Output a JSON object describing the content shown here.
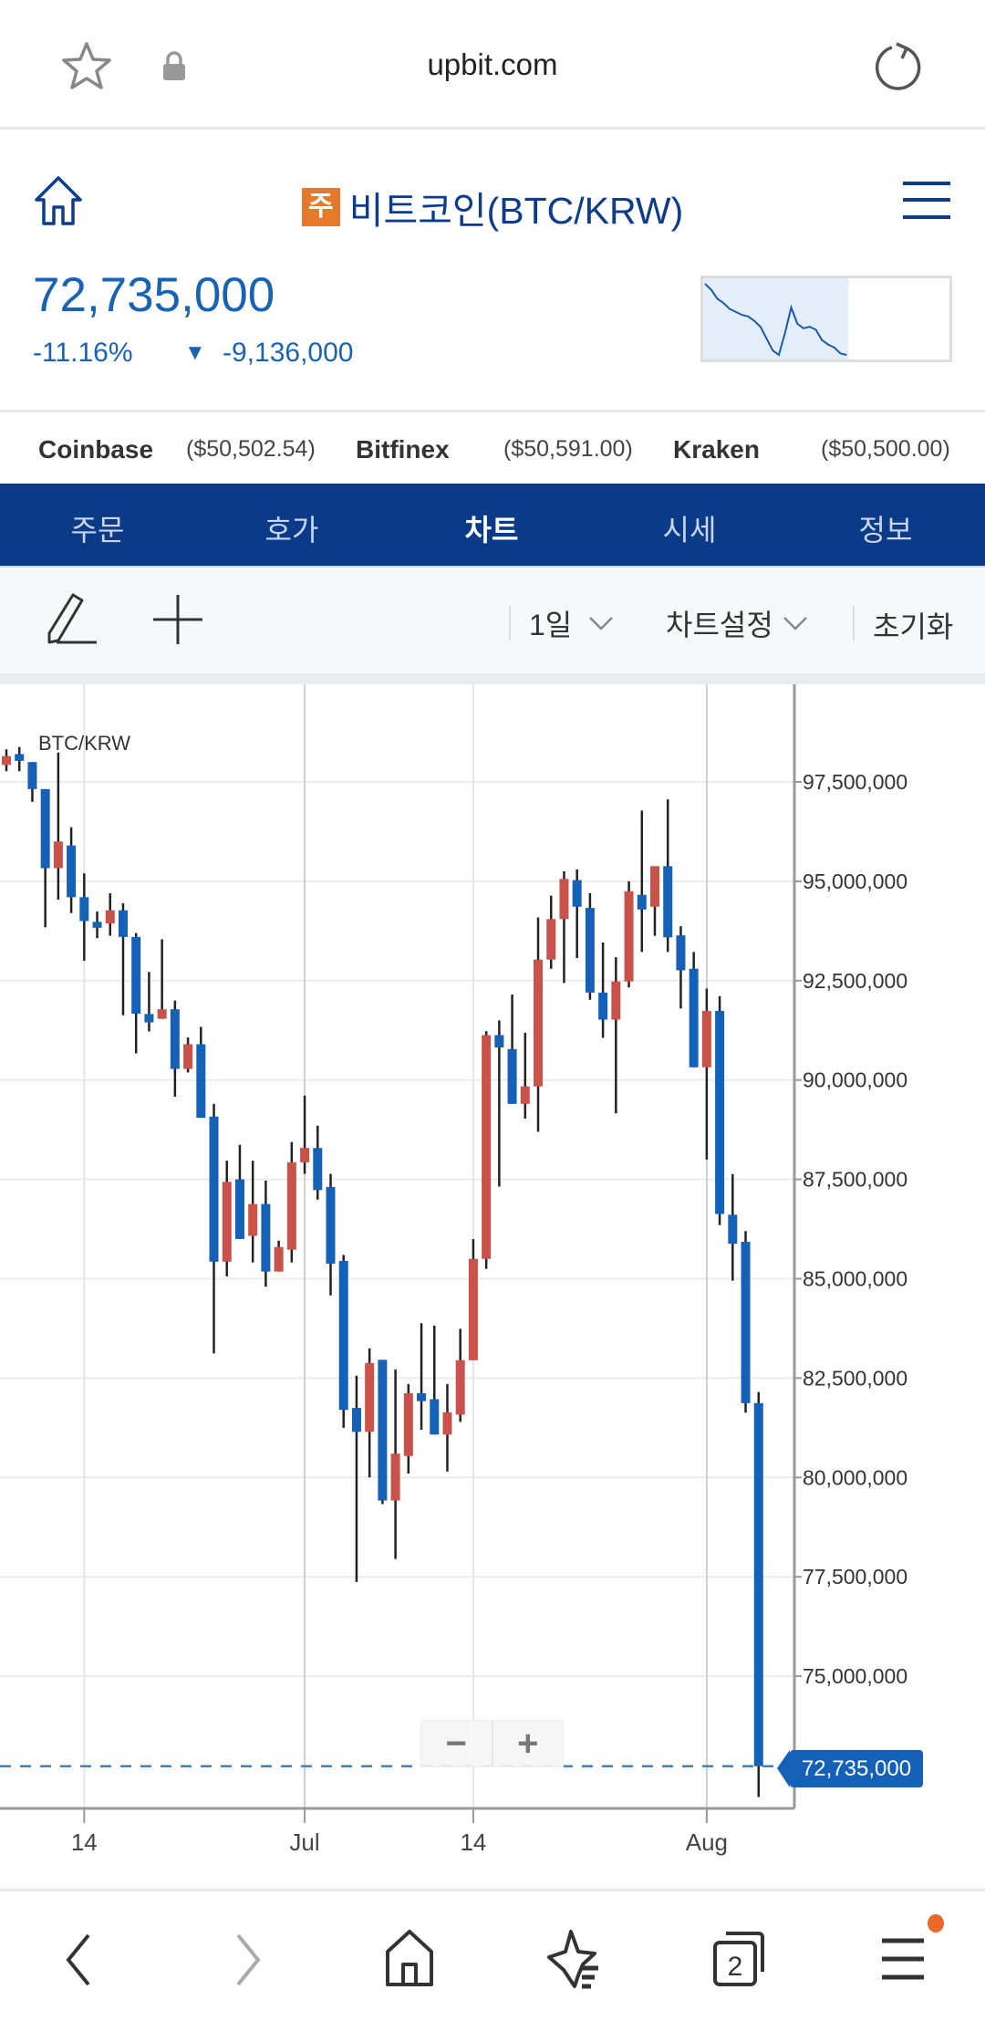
{
  "browser": {
    "url": "upbit.com",
    "icons": [
      "star-icon",
      "lock-icon",
      "reload-icon"
    ]
  },
  "header": {
    "badge": "주",
    "title": "비트코인(BTC/KRW)",
    "price": "72,735,000",
    "change_pct": "-11.16%",
    "change_arrow": "▼",
    "change_value": "-9,136,000",
    "colors": {
      "price": "#1a62b3",
      "badge": "#e6792b",
      "title": "#0d3c8c"
    }
  },
  "sparkline": {
    "levels": [
      285,
      265,
      235,
      220,
      200,
      190,
      180,
      175,
      160,
      140,
      100,
      60,
      45,
      120,
      205,
      150,
      135,
      140,
      130,
      95,
      80,
      70,
      50,
      45
    ],
    "filled_fraction": 0.59
  },
  "exchanges": [
    {
      "name": "Coinbase",
      "price": "($50,502.54)"
    },
    {
      "name": "Bitfinex",
      "price": "($50,591.00)"
    },
    {
      "name": "Kraken",
      "price": "($50,500.00)"
    }
  ],
  "tabs": [
    {
      "label": "주문"
    },
    {
      "label": "호가"
    },
    {
      "label": "차트",
      "active": true
    },
    {
      "label": "시세"
    },
    {
      "label": "정보"
    }
  ],
  "toolbar": {
    "interval": "1일",
    "settings": "차트설정",
    "reset": "초기화",
    "zoom_out": "−",
    "zoom_in": "+"
  },
  "chart_data": {
    "type": "candlestick",
    "title": "BTC/KRW",
    "colors": {
      "up": "#c9524a",
      "down": "#1561b8",
      "wick": "#222222"
    },
    "ylim": [
      71750000,
      99900000
    ],
    "y_ticks": [
      97500000,
      95000000,
      92500000,
      90000000,
      87500000,
      85000000,
      82500000,
      80000000,
      77500000,
      75000000
    ],
    "y_tick_labels": [
      "97,500,000",
      "95,000,000",
      "92,500,000",
      "90,000,000",
      "87,500,000",
      "85,000,000",
      "82,500,000",
      "80,000,000",
      "77,500,000",
      "75,000,000"
    ],
    "x_ticks": [
      {
        "date": "06-14",
        "label": "14",
        "month": false
      },
      {
        "date": "07-01",
        "label": "Jul",
        "month": true
      },
      {
        "date": "07-14",
        "label": "14",
        "month": false
      },
      {
        "date": "08-01",
        "label": "Aug",
        "month": true
      }
    ],
    "current_price": 72735000,
    "current_price_label": "72,735,000",
    "candles_columns": [
      "date",
      "open",
      "high",
      "low",
      "close"
    ],
    "candles": [
      [
        "06-08",
        97930000,
        98320000,
        97770000,
        98150000
      ],
      [
        "06-09",
        98200000,
        98380000,
        97770000,
        98030000
      ],
      [
        "06-10",
        98000000,
        98000000,
        97000000,
        97320000
      ],
      [
        "06-11",
        97320000,
        97320000,
        93840000,
        95330000
      ],
      [
        "06-12",
        95330000,
        98240000,
        94540000,
        96000000
      ],
      [
        "06-13",
        95900000,
        96360000,
        94200000,
        94600000
      ],
      [
        "06-14",
        94600000,
        95200000,
        93000000,
        94000000
      ],
      [
        "06-15",
        93980000,
        94240000,
        93570000,
        93830000
      ],
      [
        "06-16",
        93940000,
        94700000,
        93630000,
        94270000
      ],
      [
        "06-17",
        94270000,
        94450000,
        91630000,
        93600000
      ],
      [
        "06-18",
        93600000,
        93700000,
        90670000,
        91670000
      ],
      [
        "06-19",
        91660000,
        92720000,
        91220000,
        91450000
      ],
      [
        "06-20",
        91540000,
        93540000,
        91540000,
        91780000
      ],
      [
        "06-21",
        91780000,
        92000000,
        89580000,
        90280000
      ],
      [
        "06-22",
        90280000,
        91070000,
        90190000,
        90900000
      ],
      [
        "06-23",
        90900000,
        91340000,
        89050000,
        89050000
      ],
      [
        "06-24",
        89080000,
        89400000,
        83120000,
        85430000
      ],
      [
        "06-25",
        85430000,
        87970000,
        85060000,
        87440000
      ],
      [
        "06-26",
        87500000,
        88370000,
        86000000,
        86000000
      ],
      [
        "06-27",
        86080000,
        87970000,
        85410000,
        86880000
      ],
      [
        "06-28",
        86880000,
        87470000,
        84800000,
        85180000
      ],
      [
        "06-29",
        85180000,
        85960000,
        85180000,
        85800000
      ],
      [
        "06-30",
        85730000,
        88440000,
        85410000,
        87930000
      ],
      [
        "07-01",
        87930000,
        89610000,
        87640000,
        88290000
      ],
      [
        "07-02",
        88290000,
        88850000,
        86990000,
        87230000
      ],
      [
        "07-03",
        87310000,
        87640000,
        84580000,
        85380000
      ],
      [
        "07-04",
        85450000,
        85600000,
        81250000,
        81700000
      ],
      [
        "07-05",
        81750000,
        82560000,
        77370000,
        81150000
      ],
      [
        "07-06",
        81150000,
        83250000,
        80000000,
        82880000
      ],
      [
        "07-07",
        82960000,
        82960000,
        79330000,
        79420000
      ],
      [
        "07-08",
        79420000,
        82720000,
        77950000,
        80600000
      ],
      [
        "07-09",
        80540000,
        82350000,
        80100000,
        82120000
      ],
      [
        "07-10",
        82120000,
        83880000,
        81200000,
        81920000
      ],
      [
        "07-11",
        81970000,
        83820000,
        81080000,
        81080000
      ],
      [
        "07-12",
        81080000,
        82350000,
        80150000,
        81640000
      ],
      [
        "07-13",
        81580000,
        83740000,
        81400000,
        82950000
      ],
      [
        "07-14",
        82950000,
        86000000,
        82950000,
        85500000
      ],
      [
        "07-15",
        85500000,
        91230000,
        85250000,
        91130000
      ],
      [
        "07-16",
        91130000,
        91500000,
        87320000,
        90820000
      ],
      [
        "07-17",
        90780000,
        92150000,
        89400000,
        89400000
      ],
      [
        "07-18",
        89400000,
        91190000,
        89030000,
        89840000
      ],
      [
        "07-19",
        89840000,
        94090000,
        88700000,
        93030000
      ],
      [
        "07-20",
        93030000,
        94640000,
        92800000,
        94050000
      ],
      [
        "07-21",
        94050000,
        95250000,
        92440000,
        95060000
      ],
      [
        "07-22",
        95030000,
        95300000,
        93070000,
        94360000
      ],
      [
        "07-23",
        94330000,
        94700000,
        92020000,
        92200000
      ],
      [
        "07-24",
        92200000,
        93460000,
        91060000,
        91520000
      ],
      [
        "07-25",
        91520000,
        93090000,
        89160000,
        92480000
      ],
      [
        "07-26",
        92480000,
        95000000,
        92330000,
        94750000
      ],
      [
        "07-27",
        94660000,
        96780000,
        93220000,
        94290000
      ],
      [
        "07-28",
        94360000,
        95380000,
        93630000,
        95380000
      ],
      [
        "07-29",
        95380000,
        97060000,
        93220000,
        93590000
      ],
      [
        "07-30",
        93640000,
        93870000,
        91800000,
        92760000
      ],
      [
        "07-31",
        92800000,
        93220000,
        90320000,
        90320000
      ],
      [
        "08-01",
        90320000,
        92300000,
        88000000,
        91740000
      ],
      [
        "08-02",
        91740000,
        92110000,
        86350000,
        86630000
      ],
      [
        "08-03",
        86610000,
        87630000,
        84950000,
        85880000
      ],
      [
        "08-04",
        85930000,
        86200000,
        81630000,
        81870000
      ],
      [
        "08-05",
        81870000,
        82150000,
        71960000,
        72735000
      ]
    ]
  },
  "bottom_nav": {
    "tabs_count": "2",
    "items": [
      "back-icon",
      "forward-icon",
      "home-icon",
      "bookmarks-icon",
      "tabs-icon",
      "menu-icon"
    ],
    "notification_color": "#e8692a"
  }
}
